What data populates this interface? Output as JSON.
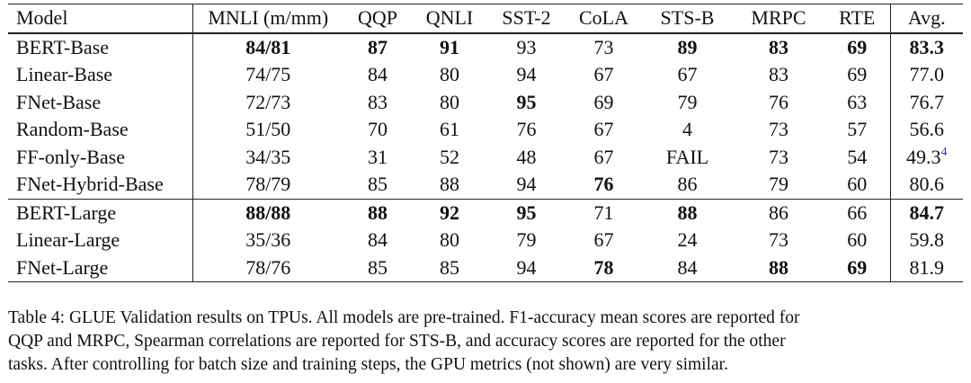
{
  "table": {
    "headers": [
      "Model",
      "MNLI (m/mm)",
      "QQP",
      "QNLI",
      "SST-2",
      "CoLA",
      "STS-B",
      "MRPC",
      "RTE",
      "Avg."
    ],
    "rows": [
      {
        "cells": [
          "BERT-Base",
          "84/81",
          "87",
          "91",
          "93",
          "73",
          "89",
          "83",
          "69",
          "83.3"
        ],
        "bold": [
          false,
          true,
          true,
          true,
          false,
          false,
          true,
          true,
          true,
          true
        ],
        "sup": ""
      },
      {
        "cells": [
          "Linear-Base",
          "74/75",
          "84",
          "80",
          "94",
          "67",
          "67",
          "83",
          "69",
          "77.0"
        ],
        "bold": [
          false,
          false,
          false,
          false,
          false,
          false,
          false,
          false,
          false,
          false
        ],
        "sup": ""
      },
      {
        "cells": [
          "FNet-Base",
          "72/73",
          "83",
          "80",
          "95",
          "69",
          "79",
          "76",
          "63",
          "76.7"
        ],
        "bold": [
          false,
          false,
          false,
          false,
          true,
          false,
          false,
          false,
          false,
          false
        ],
        "sup": ""
      },
      {
        "cells": [
          "Random-Base",
          "51/50",
          "70",
          "61",
          "76",
          "67",
          "4",
          "73",
          "57",
          "56.6"
        ],
        "bold": [
          false,
          false,
          false,
          false,
          false,
          false,
          false,
          false,
          false,
          false
        ],
        "sup": ""
      },
      {
        "cells": [
          "FF-only-Base",
          "34/35",
          "31",
          "52",
          "48",
          "67",
          "FAIL",
          "73",
          "54",
          "49.3"
        ],
        "bold": [
          false,
          false,
          false,
          false,
          false,
          false,
          false,
          false,
          false,
          false
        ],
        "sup": "4"
      },
      {
        "cells": [
          "FNet-Hybrid-Base",
          "78/79",
          "85",
          "88",
          "94",
          "76",
          "86",
          "79",
          "60",
          "80.6"
        ],
        "bold": [
          false,
          false,
          false,
          false,
          false,
          true,
          false,
          false,
          false,
          false
        ],
        "sup": ""
      },
      {
        "cells": [
          "BERT-Large",
          "88/88",
          "88",
          "92",
          "95",
          "71",
          "88",
          "86",
          "66",
          "84.7"
        ],
        "bold": [
          false,
          true,
          true,
          true,
          true,
          false,
          true,
          false,
          false,
          true
        ],
        "sup": "",
        "group_start": true
      },
      {
        "cells": [
          "Linear-Large",
          "35/36",
          "84",
          "80",
          "79",
          "67",
          "24",
          "73",
          "60",
          "59.8"
        ],
        "bold": [
          false,
          false,
          false,
          false,
          false,
          false,
          false,
          false,
          false,
          false
        ],
        "sup": ""
      },
      {
        "cells": [
          "FNet-Large",
          "78/76",
          "85",
          "85",
          "94",
          "78",
          "84",
          "88",
          "69",
          "81.9"
        ],
        "bold": [
          false,
          false,
          false,
          false,
          false,
          true,
          false,
          true,
          true,
          false
        ],
        "sup": ""
      }
    ]
  },
  "caption": {
    "line1": "Table 4: GLUE Validation results on TPUs. All models are pre-trained. F1-accuracy mean scores are reported for",
    "line2": "QQP and MRPC, Spearman correlations are reported for STS-B, and accuracy scores are reported for the other",
    "line3": "tasks. After controlling for batch size and training steps, the GPU metrics (not shown) are very similar."
  }
}
